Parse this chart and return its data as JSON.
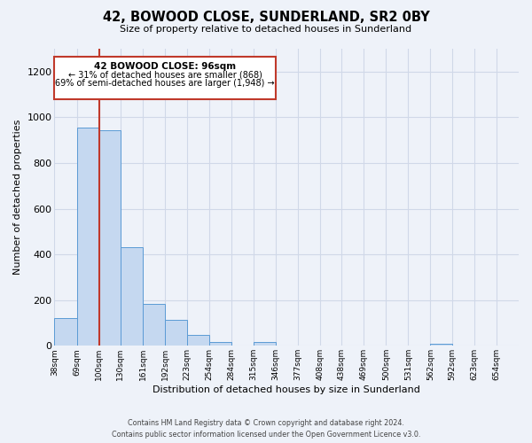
{
  "title": "42, BOWOOD CLOSE, SUNDERLAND, SR2 0BY",
  "subtitle": "Size of property relative to detached houses in Sunderland",
  "xlabel": "Distribution of detached houses by size in Sunderland",
  "ylabel": "Number of detached properties",
  "bin_labels": [
    "38sqm",
    "69sqm",
    "100sqm",
    "130sqm",
    "161sqm",
    "192sqm",
    "223sqm",
    "254sqm",
    "284sqm",
    "315sqm",
    "346sqm",
    "377sqm",
    "408sqm",
    "438sqm",
    "469sqm",
    "500sqm",
    "531sqm",
    "562sqm",
    "592sqm",
    "623sqm",
    "654sqm"
  ],
  "bar_values": [
    120,
    955,
    945,
    430,
    185,
    115,
    47,
    18,
    0,
    15,
    0,
    0,
    0,
    0,
    0,
    0,
    0,
    10,
    0,
    0,
    0
  ],
  "bar_color": "#c5d8f0",
  "bar_edgecolor": "#5b9bd5",
  "ylim": [
    0,
    1300
  ],
  "yticks": [
    0,
    200,
    400,
    600,
    800,
    1000,
    1200
  ],
  "property_line_x": 100,
  "property_line_label": "42 BOWOOD CLOSE: 96sqm",
  "annotation_line1": "← 31% of detached houses are smaller (868)",
  "annotation_line2": "69% of semi-detached houses are larger (1,948) →",
  "property_line_color": "#c0392b",
  "annotation_box_edgecolor": "#c0392b",
  "grid_color": "#d0d8e8",
  "background_color": "#eef2f9",
  "footer_line1": "Contains HM Land Registry data © Crown copyright and database right 2024.",
  "footer_line2": "Contains public sector information licensed under the Open Government Licence v3.0.",
  "bin_edges": [
    38,
    69,
    100,
    130,
    161,
    192,
    223,
    254,
    284,
    315,
    346,
    377,
    408,
    438,
    469,
    500,
    531,
    562,
    592,
    623,
    654,
    685
  ]
}
